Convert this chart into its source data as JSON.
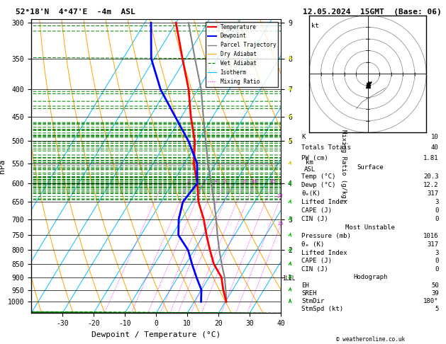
{
  "title_left": "52°18'N  4°47'E  -4m  ASL",
  "title_right": "12.05.2024  15GMT  (Base: 06)",
  "xlabel": "Dewpoint / Temperature (°C)",
  "temperature_data": {
    "pressure": [
      1000,
      950,
      900,
      850,
      800,
      750,
      700,
      650,
      600,
      550,
      500,
      450,
      400,
      350,
      300
    ],
    "temp": [
      20.3,
      17.0,
      14.0,
      9.0,
      5.0,
      1.0,
      -3.0,
      -8.0,
      -12.0,
      -17.0,
      -21.0,
      -27.0,
      -33.0,
      -41.0,
      -50.0
    ]
  },
  "dewpoint_data": {
    "pressure": [
      1000,
      950,
      900,
      850,
      800,
      750,
      700,
      650,
      600,
      550,
      500,
      450,
      400,
      350,
      300
    ],
    "temp": [
      12.2,
      10.0,
      6.0,
      2.0,
      -2.0,
      -8.0,
      -11.0,
      -13.0,
      -12.0,
      -16.0,
      -23.0,
      -32.0,
      -42.0,
      -51.0,
      -58.0
    ]
  },
  "parcel_data": {
    "pressure": [
      1000,
      950,
      900,
      850,
      800,
      750,
      700,
      650,
      600,
      550,
      500,
      450,
      400,
      350,
      300
    ],
    "temp": [
      20.3,
      17.8,
      15.0,
      11.5,
      8.0,
      4.5,
      1.0,
      -3.0,
      -7.5,
      -12.5,
      -17.5,
      -23.0,
      -29.0,
      -37.0,
      -46.0
    ]
  },
  "lcl_pressure": 905,
  "stats": {
    "K": 10,
    "Totals_Totals": 40,
    "PW_cm": 1.81,
    "Surface_Temp": 20.3,
    "Surface_Dewp": 12.2,
    "Surface_theta_e": 317,
    "Surface_Lifted_Index": 3,
    "Surface_CAPE": 0,
    "Surface_CIN": 0,
    "MU_Pressure": 1016,
    "MU_theta_e": 317,
    "MU_Lifted_Index": 3,
    "MU_CAPE": 0,
    "MU_CIN": 0,
    "EH": 50,
    "SREH": 39,
    "StmDir": 180,
    "StmSpd": 5
  },
  "temp_color": "#ff0000",
  "dewp_color": "#0000ff",
  "parcel_color": "#808080",
  "dry_adiabat_color": "#ffa500",
  "wet_adiabat_color": "#008000",
  "isotherm_color": "#00bfff",
  "mixing_ratio_color": "#ff00ff",
  "km_pressures": [
    300,
    350,
    400,
    450,
    500,
    600,
    700,
    800,
    900
  ],
  "km_values": [
    9,
    8,
    7,
    6,
    5,
    4,
    3,
    2,
    1
  ],
  "wind_colors": [
    "#00aa00",
    "#00aa00",
    "#00aa00",
    "#00aa00",
    "#00cc00",
    "#00cc00",
    "#00cc00",
    "#00cc00",
    "#00cc00",
    "#cccc00",
    "#cccc00",
    "#ccff00",
    "#ccff00",
    "#ffff00",
    "#ffff00"
  ],
  "wind_u": [
    0,
    1,
    1,
    2,
    2,
    3,
    4,
    3,
    3,
    3,
    3,
    3,
    2,
    2,
    2
  ],
  "wind_v": [
    5,
    5,
    6,
    7,
    8,
    9,
    10,
    9,
    8,
    8,
    9,
    10,
    11,
    12,
    11
  ],
  "wind_pressures": [
    1000,
    950,
    900,
    850,
    800,
    750,
    700,
    650,
    600,
    550,
    500,
    450,
    400,
    350,
    300
  ]
}
